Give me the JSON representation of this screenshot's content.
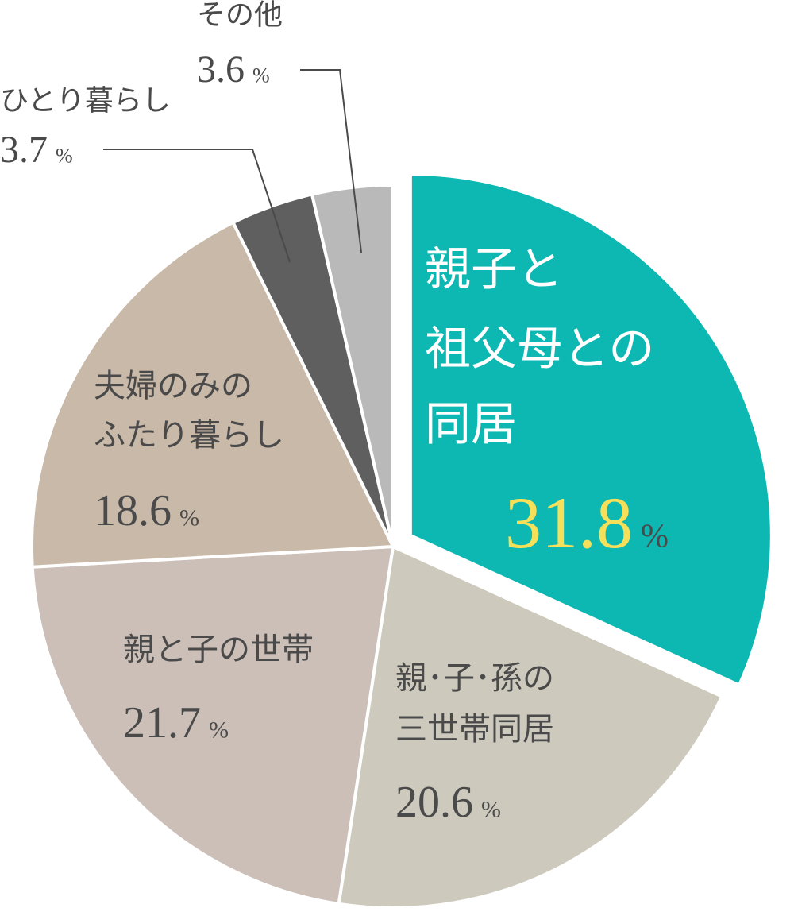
{
  "chart_data": {
    "type": "pie",
    "categories": [
      [
        "親子と",
        "祖父母との",
        "同居"
      ],
      [
        "親･子･孫の",
        "三世帯同居"
      ],
      [
        "親と子の世帯"
      ],
      [
        "夫婦のみの",
        "ふたり暮らし"
      ],
      [
        "ひとり暮らし"
      ],
      [
        "その他"
      ]
    ],
    "values": [
      31.8,
      20.6,
      21.7,
      18.6,
      3.7,
      3.6
    ],
    "unit": "%",
    "colors": [
      "#0db8b3",
      "#cdcabd",
      "#cbbfb7",
      "#c9b9a9",
      "#5f5f5f",
      "#b9b9b9"
    ]
  }
}
